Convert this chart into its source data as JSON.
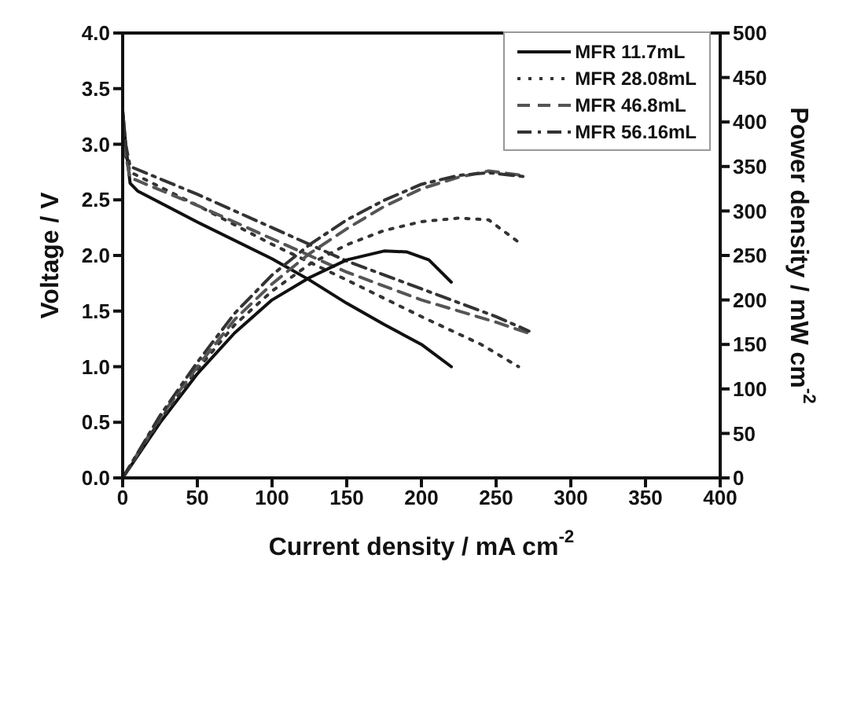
{
  "chart_data": {
    "type": "line",
    "xlabel": "Current density / mA cm$^{-2}$",
    "ylabel": "Voltage / V",
    "y2label": "Power density / mW cm$^{-2}$",
    "xlim": [
      0,
      400
    ],
    "xticks": [
      0,
      50,
      100,
      150,
      200,
      250,
      300,
      350,
      400
    ],
    "ylim": [
      0,
      4
    ],
    "yticks": [
      {
        "value": 0,
        "label": "0.0"
      },
      {
        "value": 0.5,
        "label": "0.5"
      },
      {
        "value": 1,
        "label": "1.0"
      },
      {
        "value": 1.5,
        "label": "1.5"
      },
      {
        "value": 2,
        "label": "2.0"
      },
      {
        "value": 2.5,
        "label": "2.5"
      },
      {
        "value": 3,
        "label": "3.0"
      },
      {
        "value": 3.5,
        "label": "3.5"
      },
      {
        "value": 4,
        "label": "4.0"
      }
    ],
    "y2lim": [
      0,
      500
    ],
    "y2ticks": [
      0,
      50,
      100,
      150,
      200,
      250,
      300,
      350,
      400,
      450,
      500
    ],
    "grid": false,
    "legend": "top right",
    "marker": "none",
    "series": [
      {
        "name": "MFR 11.7mL",
        "color": "#111111",
        "line_style": "solid",
        "x": [
          0,
          2,
          5,
          10,
          50,
          100,
          125,
          150,
          175,
          200,
          220
        ],
        "values": [
          3.3,
          3.0,
          2.65,
          2.58,
          2.3,
          1.97,
          1.78,
          1.57,
          1.38,
          1.2,
          1.0
        ]
      },
      {
        "name": "MFR 28.08mL",
        "color": "#333333",
        "line_style": "dotted",
        "x": [
          0,
          2,
          5,
          50,
          100,
          150,
          200,
          240,
          265
        ],
        "values": [
          3.2,
          2.9,
          2.75,
          2.45,
          2.1,
          1.78,
          1.45,
          1.2,
          1.0
        ]
      },
      {
        "name": "MFR 46.8mL",
        "color": "#555555",
        "line_style": "dashed",
        "x": [
          0,
          2,
          5,
          50,
          100,
          150,
          200,
          250,
          272
        ],
        "values": [
          3.2,
          2.9,
          2.7,
          2.45,
          2.15,
          1.85,
          1.6,
          1.4,
          1.3
        ]
      },
      {
        "name": "MFR 56.16mL",
        "color": "#333333",
        "line_style": "dashdot",
        "x": [
          0,
          2,
          5,
          50,
          100,
          150,
          200,
          250,
          272
        ],
        "values": [
          3.3,
          3.0,
          2.8,
          2.55,
          2.25,
          1.95,
          1.7,
          1.45,
          1.32
        ]
      },
      {
        "axis": "y2",
        "color": "#111111",
        "line_style": "solid",
        "x": [
          0,
          25,
          50,
          75,
          100,
          125,
          150,
          175,
          190,
          205,
          220
        ],
        "values": [
          0,
          62,
          117,
          163,
          200,
          225,
          245,
          255,
          254,
          245,
          220
        ]
      },
      {
        "axis": "y2",
        "color": "#333333",
        "line_style": "dotted",
        "x": [
          0,
          25,
          50,
          75,
          100,
          125,
          150,
          175,
          200,
          225,
          245,
          265
        ],
        "values": [
          0,
          65,
          122,
          172,
          210,
          240,
          262,
          278,
          288,
          292,
          290,
          265
        ]
      },
      {
        "axis": "y2",
        "color": "#555555",
        "line_style": "dashed",
        "x": [
          0,
          25,
          50,
          75,
          100,
          125,
          150,
          175,
          200,
          225,
          245,
          268
        ],
        "values": [
          0,
          68,
          125,
          178,
          218,
          252,
          280,
          305,
          325,
          338,
          345,
          340
        ]
      },
      {
        "axis": "y2",
        "color": "#333333",
        "line_style": "dashdot",
        "x": [
          0,
          25,
          50,
          75,
          100,
          125,
          150,
          175,
          200,
          225,
          245,
          272
        ],
        "values": [
          0,
          70,
          130,
          185,
          228,
          262,
          290,
          312,
          330,
          340,
          343,
          338
        ]
      }
    ]
  }
}
